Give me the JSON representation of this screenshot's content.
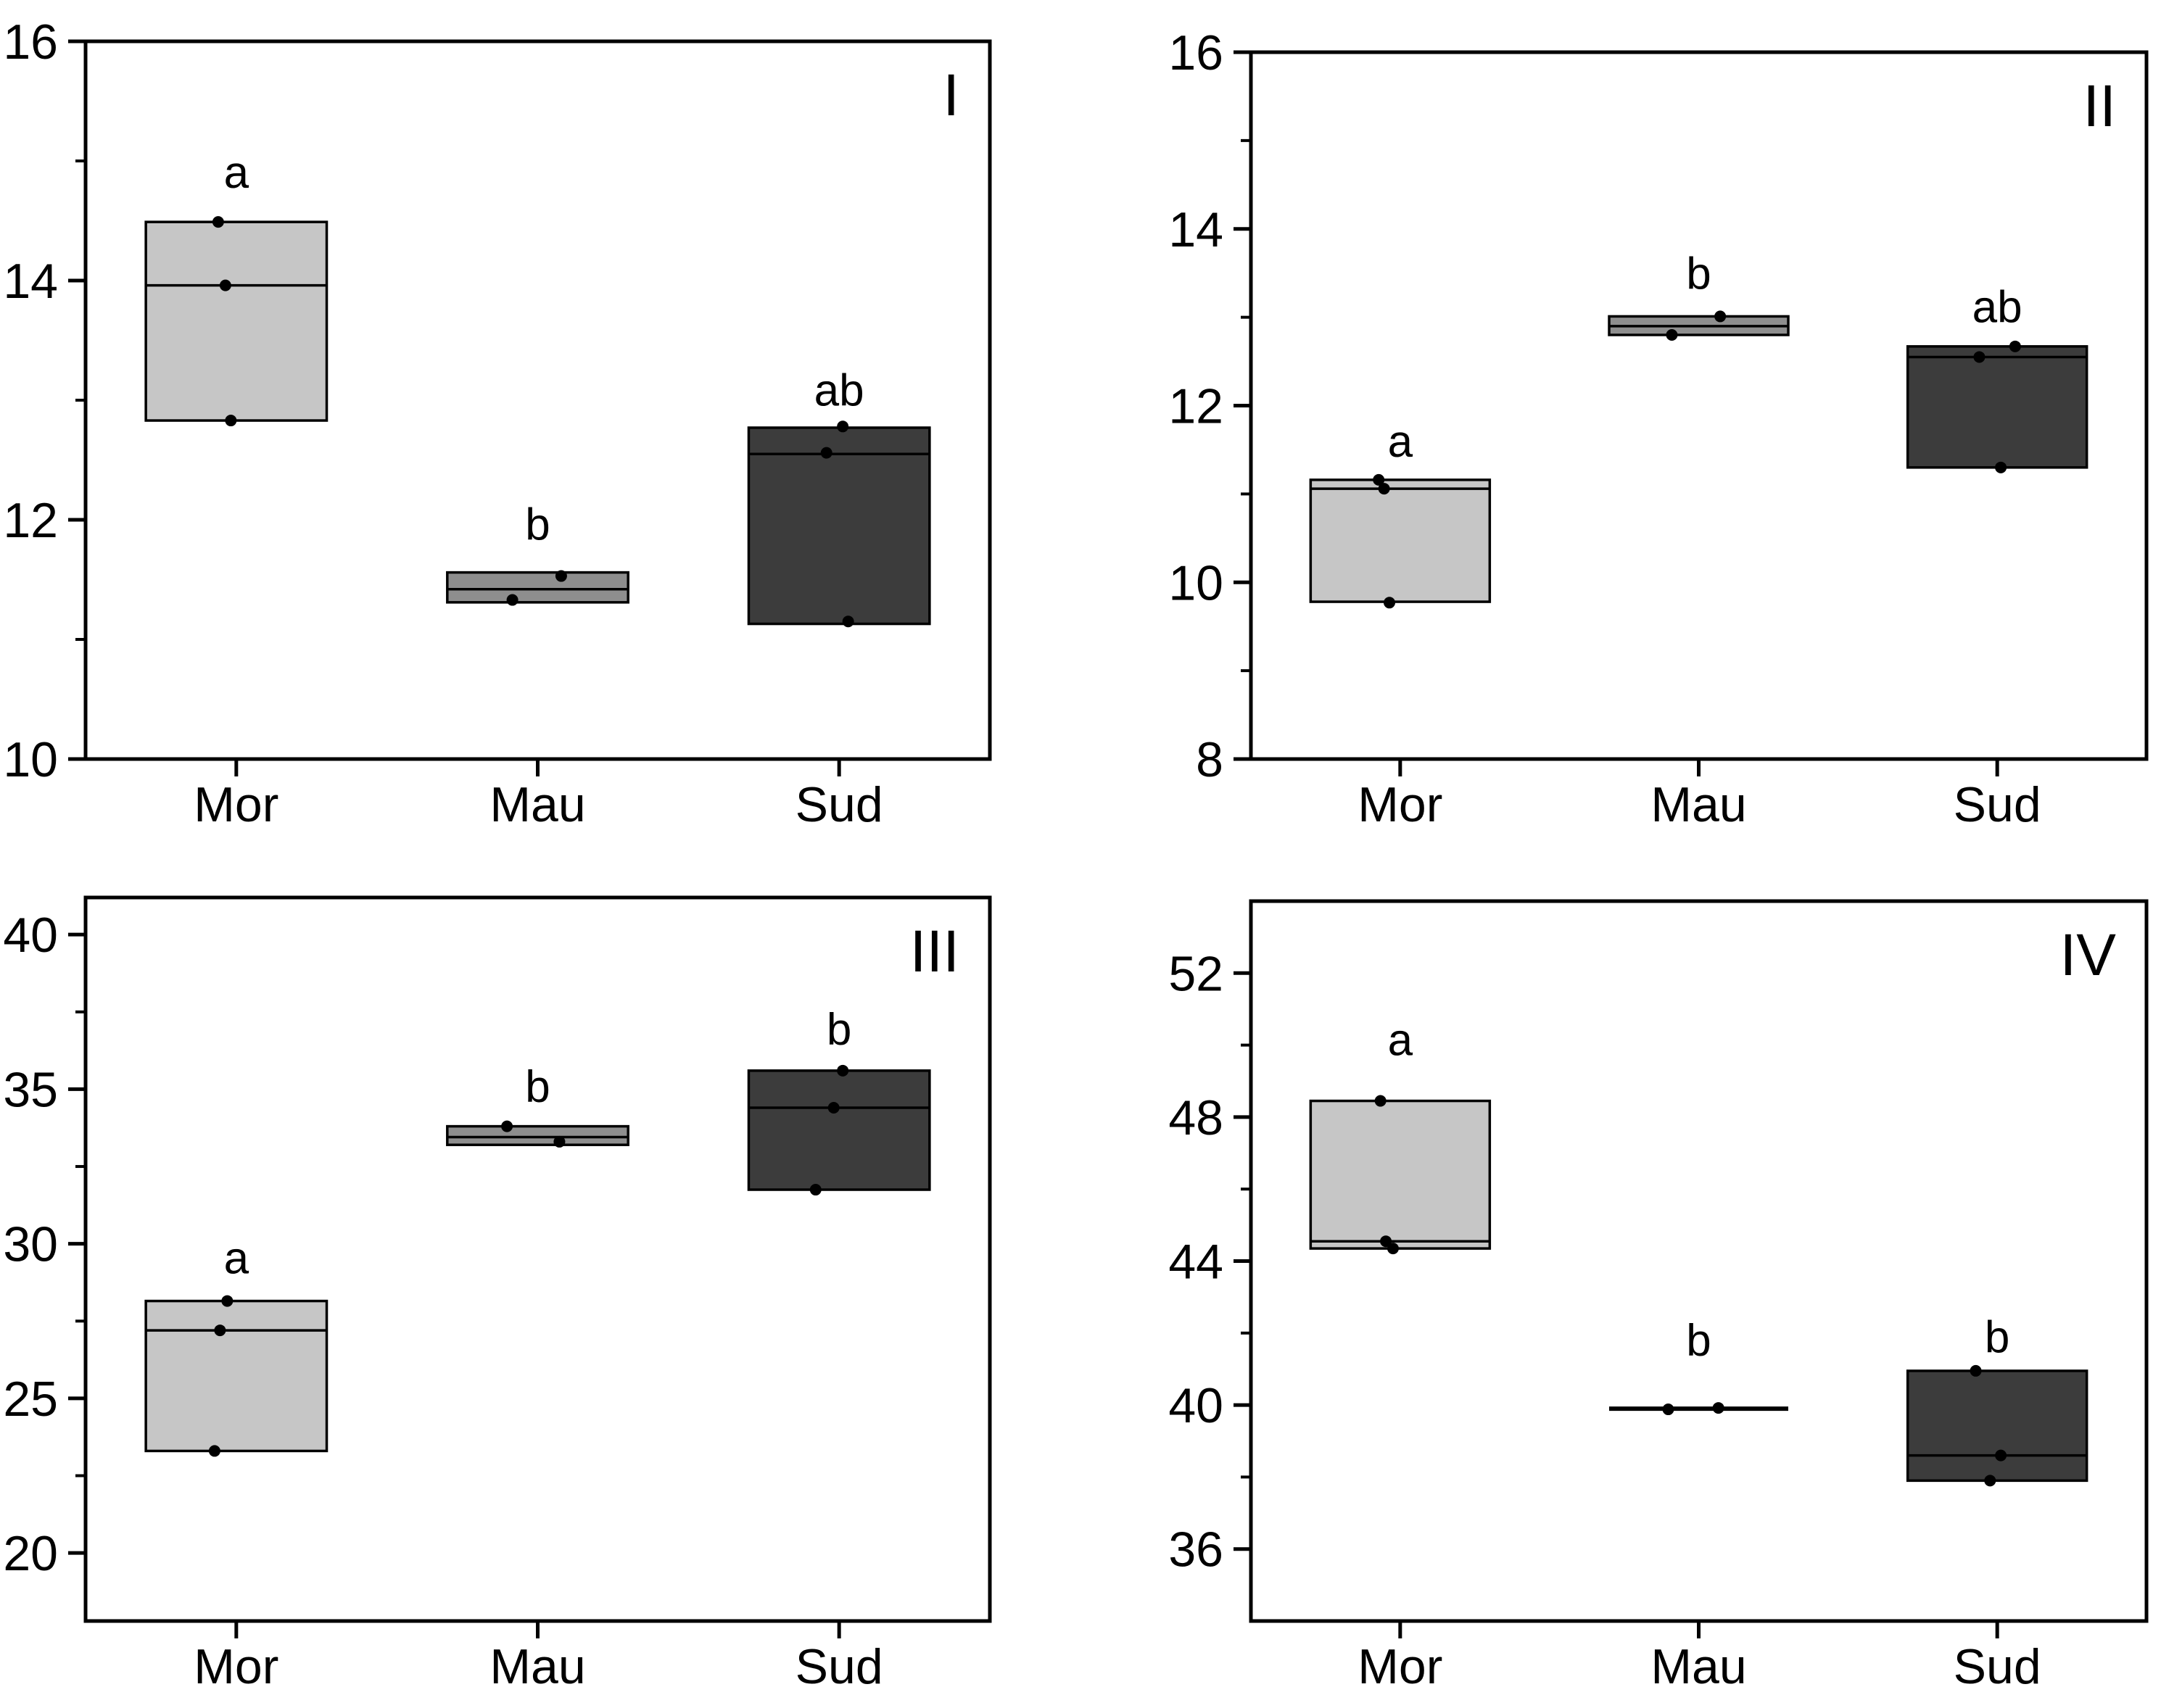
{
  "figure": {
    "background": "#ffffff",
    "description": "Four-panel box plot figure comparing three origins (Mor, Mau, Sud) with significance letters"
  },
  "chart_data": {
    "type": "box",
    "categories": [
      "Mor",
      "Mau",
      "Sud"
    ],
    "legend": "none",
    "grid": false,
    "colors": {
      "Mor": "#c6c6c6",
      "Mau": "#8e8e8e",
      "Sud": "#3c3c3c",
      "line": "#000000",
      "point": "#000000",
      "background": "#ffffff"
    },
    "panels": [
      {
        "label": "I",
        "ylim": [
          10,
          16
        ],
        "yticks": [
          10,
          12,
          14,
          16
        ],
        "yminorticks": [
          11,
          13,
          15
        ],
        "boxes": [
          {
            "category": "Mor",
            "q1": 12.83,
            "median": 13.96,
            "q3": 14.49,
            "sig_letter": "a",
            "sig_letter_y": 14.92,
            "points": [
              {
                "value": 14.49,
                "dx": -0.1
              },
              {
                "value": 13.96,
                "dx": -0.06
              },
              {
                "value": 12.83,
                "dx": -0.03
              }
            ]
          },
          {
            "category": "Mau",
            "q1": 11.31,
            "median": 11.42,
            "q3": 11.56,
            "sig_letter": "b",
            "sig_letter_y": 11.98,
            "points": [
              {
                "value": 11.53,
                "dx": 0.13
              },
              {
                "value": 11.33,
                "dx": -0.14
              }
            ]
          },
          {
            "category": "Sud",
            "q1": 11.13,
            "median": 12.55,
            "q3": 12.77,
            "sig_letter": "ab",
            "sig_letter_y": 13.1,
            "points": [
              {
                "value": 12.78,
                "dx": 0.02
              },
              {
                "value": 12.56,
                "dx": -0.07
              },
              {
                "value": 11.15,
                "dx": 0.05
              }
            ]
          }
        ]
      },
      {
        "label": "II",
        "ylim": [
          8,
          16
        ],
        "yticks": [
          8,
          10,
          12,
          14,
          16
        ],
        "yminorticks": [
          9,
          11,
          13,
          15
        ],
        "boxes": [
          {
            "category": "Mor",
            "q1": 9.78,
            "median": 11.06,
            "q3": 11.16,
            "sig_letter": "a",
            "sig_letter_y": 11.62,
            "points": [
              {
                "value": 11.16,
                "dx": -0.12
              },
              {
                "value": 11.06,
                "dx": -0.09
              },
              {
                "value": 9.77,
                "dx": -0.06
              }
            ]
          },
          {
            "category": "Mau",
            "q1": 12.8,
            "median": 12.9,
            "q3": 13.01,
            "sig_letter": "b",
            "sig_letter_y": 13.52,
            "points": [
              {
                "value": 13.01,
                "dx": 0.12
              },
              {
                "value": 12.8,
                "dx": -0.15
              }
            ]
          },
          {
            "category": "Sud",
            "q1": 11.3,
            "median": 12.55,
            "q3": 12.67,
            "sig_letter": "ab",
            "sig_letter_y": 13.14,
            "points": [
              {
                "value": 12.67,
                "dx": 0.1
              },
              {
                "value": 12.55,
                "dx": -0.1
              },
              {
                "value": 11.3,
                "dx": 0.02
              }
            ]
          }
        ]
      },
      {
        "label": "III",
        "ylim": [
          17.8,
          41.2
        ],
        "yticks": [
          20,
          25,
          30,
          35,
          40
        ],
        "yminorticks": [
          22.5,
          27.5,
          32.5,
          37.5
        ],
        "boxes": [
          {
            "category": "Mor",
            "q1": 23.3,
            "median": 27.2,
            "q3": 28.15,
            "sig_letter": "a",
            "sig_letter_y": 29.6,
            "points": [
              {
                "value": 28.15,
                "dx": -0.05
              },
              {
                "value": 27.2,
                "dx": -0.09
              },
              {
                "value": 23.3,
                "dx": -0.12
              }
            ]
          },
          {
            "category": "Mau",
            "q1": 33.2,
            "median": 33.45,
            "q3": 33.8,
            "sig_letter": "b",
            "sig_letter_y": 35.15,
            "points": [
              {
                "value": 33.8,
                "dx": -0.17
              },
              {
                "value": 33.3,
                "dx": 0.12
              }
            ]
          },
          {
            "category": "Sud",
            "q1": 31.75,
            "median": 34.4,
            "q3": 35.6,
            "sig_letter": "b",
            "sig_letter_y": 37.0,
            "points": [
              {
                "value": 35.6,
                "dx": 0.02
              },
              {
                "value": 34.4,
                "dx": -0.03
              },
              {
                "value": 31.75,
                "dx": -0.13
              }
            ]
          }
        ]
      },
      {
        "label": "IV",
        "ylim": [
          34,
          54
        ],
        "yticks": [
          36,
          40,
          44,
          48,
          52
        ],
        "yminorticks": [
          38,
          42,
          46,
          50
        ],
        "boxes": [
          {
            "category": "Mor",
            "q1": 44.35,
            "median": 44.55,
            "q3": 48.45,
            "sig_letter": "a",
            "sig_letter_y": 50.2,
            "points": [
              {
                "value": 48.45,
                "dx": -0.11
              },
              {
                "value": 44.55,
                "dx": -0.08
              },
              {
                "value": 44.35,
                "dx": -0.04
              }
            ]
          },
          {
            "category": "Mau",
            "q1": 39.9,
            "median": 39.9,
            "q3": 39.9,
            "collapsed": true,
            "sig_letter": "b",
            "sig_letter_y": 41.85,
            "points": [
              {
                "value": 39.88,
                "dx": -0.17
              },
              {
                "value": 39.92,
                "dx": 0.11
              }
            ]
          },
          {
            "category": "Sud",
            "q1": 37.9,
            "median": 38.6,
            "q3": 40.95,
            "sig_letter": "b",
            "sig_letter_y": 41.95,
            "points": [
              {
                "value": 40.95,
                "dx": -0.12
              },
              {
                "value": 38.6,
                "dx": 0.02
              },
              {
                "value": 37.9,
                "dx": -0.04
              }
            ]
          }
        ]
      }
    ]
  }
}
